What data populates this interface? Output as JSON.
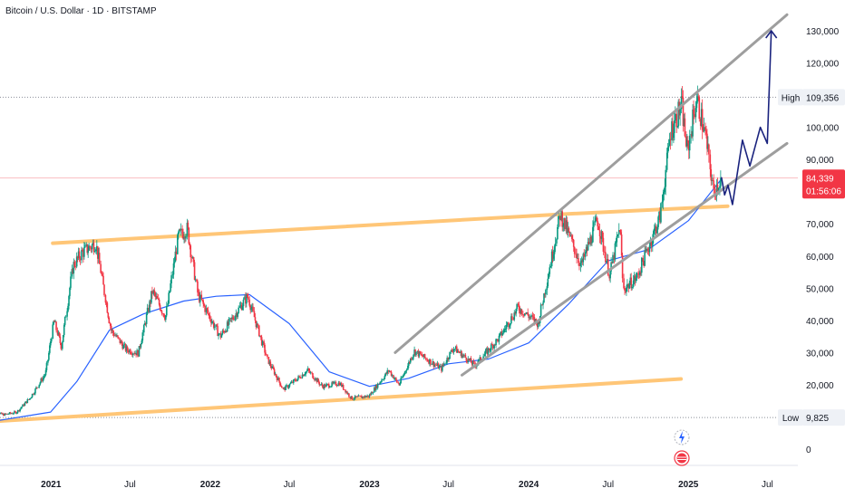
{
  "title": "Bitcoin / U.S. Dollar · 1D · BITSTAMP",
  "colors": {
    "up": "#089981",
    "down": "#f23645",
    "ma": "#2962ff",
    "channel": "#9e9e9e",
    "support": "#ffc677",
    "projection": "#1a237e",
    "price_badge": "#f23645",
    "hilo_badge_bg": "#eef1f6"
  },
  "chart_data": {
    "type": "candlestick",
    "symbol": "BTCUSD",
    "exchange": "BITSTAMP",
    "interval": "1D",
    "x_range": [
      "2020-08-10",
      "2025-08-15"
    ],
    "y_ticks": [
      0,
      10000,
      20000,
      30000,
      40000,
      50000,
      60000,
      70000,
      80000,
      90000,
      100000,
      110000,
      120000,
      130000
    ],
    "y_tick_labels": [
      "0",
      "",
      "20,000",
      "30,000",
      "40,000",
      "50,000",
      "60,000",
      "70,000",
      "",
      "90,000",
      "100,000",
      "",
      "120,000",
      "130,000"
    ],
    "x_tick_labels": [
      {
        "date": "2021-01-01",
        "label": "2021",
        "year": true
      },
      {
        "date": "2021-07-01",
        "label": "Jul",
        "year": false
      },
      {
        "date": "2022-01-01",
        "label": "2022",
        "year": true
      },
      {
        "date": "2022-07-01",
        "label": "Jul",
        "year": false
      },
      {
        "date": "2023-01-01",
        "label": "2023",
        "year": true
      },
      {
        "date": "2023-07-01",
        "label": "Jul",
        "year": false
      },
      {
        "date": "2024-01-01",
        "label": "2024",
        "year": true
      },
      {
        "date": "2024-07-01",
        "label": "Jul",
        "year": false
      },
      {
        "date": "2025-01-01",
        "label": "2025",
        "year": true
      },
      {
        "date": "2025-07-01",
        "label": "Jul",
        "year": false
      }
    ],
    "price_path": [
      [
        "2020-08-15",
        11800
      ],
      [
        "2020-09-15",
        10700
      ],
      [
        "2020-10-15",
        11500
      ],
      [
        "2020-11-15",
        16000
      ],
      [
        "2020-12-20",
        23500
      ],
      [
        "2021-01-08",
        40000
      ],
      [
        "2021-01-25",
        32000
      ],
      [
        "2021-02-21",
        57000
      ],
      [
        "2021-03-13",
        61000
      ],
      [
        "2021-04-14",
        64000
      ],
      [
        "2021-05-19",
        37000
      ],
      [
        "2021-06-22",
        31000
      ],
      [
        "2021-07-20",
        29800
      ],
      [
        "2021-08-22",
        49000
      ],
      [
        "2021-09-21",
        41000
      ],
      [
        "2021-10-20",
        66000
      ],
      [
        "2021-11-10",
        68500
      ],
      [
        "2021-12-04",
        48000
      ],
      [
        "2022-01-24",
        35000
      ],
      [
        "2022-03-28",
        47500
      ],
      [
        "2022-05-12",
        28000
      ],
      [
        "2022-06-18",
        18500
      ],
      [
        "2022-08-13",
        24500
      ],
      [
        "2022-09-15",
        19500
      ],
      [
        "2022-10-25",
        20500
      ],
      [
        "2022-11-21",
        15800
      ],
      [
        "2022-12-31",
        16500
      ],
      [
        "2023-02-15",
        24500
      ],
      [
        "2023-03-10",
        20000
      ],
      [
        "2023-04-14",
        30500
      ],
      [
        "2023-06-15",
        25000
      ],
      [
        "2023-07-13",
        31500
      ],
      [
        "2023-08-31",
        26000
      ],
      [
        "2023-10-25",
        34500
      ],
      [
        "2023-12-08",
        44000
      ],
      [
        "2024-01-23",
        39000
      ],
      [
        "2024-03-14",
        73000
      ],
      [
        "2024-05-01",
        57000
      ],
      [
        "2024-06-07",
        71500
      ],
      [
        "2024-07-05",
        54000
      ],
      [
        "2024-07-29",
        69500
      ],
      [
        "2024-08-05",
        49500
      ],
      [
        "2024-09-06",
        53500
      ],
      [
        "2024-10-29",
        72500
      ],
      [
        "2024-11-22",
        99000
      ],
      [
        "2024-12-17",
        107000
      ],
      [
        "2024-12-30",
        92000
      ],
      [
        "2025-01-20",
        109356
      ],
      [
        "2025-02-10",
        97000
      ],
      [
        "2025-02-28",
        80000
      ],
      [
        "2025-03-18",
        84339
      ]
    ],
    "moving_average": [
      [
        "2020-08-15",
        8500
      ],
      [
        "2020-12-31",
        11500
      ],
      [
        "2021-03-01",
        21000
      ],
      [
        "2021-05-15",
        37000
      ],
      [
        "2021-08-01",
        42000
      ],
      [
        "2021-11-01",
        46000
      ],
      [
        "2022-01-15",
        47500
      ],
      [
        "2022-04-01",
        48000
      ],
      [
        "2022-07-01",
        39000
      ],
      [
        "2022-10-01",
        24000
      ],
      [
        "2023-01-01",
        19500
      ],
      [
        "2023-04-01",
        22000
      ],
      [
        "2023-07-01",
        26500
      ],
      [
        "2023-10-01",
        28000
      ],
      [
        "2024-01-01",
        33000
      ],
      [
        "2024-04-01",
        45000
      ],
      [
        "2024-07-01",
        58500
      ],
      [
        "2024-10-01",
        62000
      ],
      [
        "2025-01-01",
        71000
      ],
      [
        "2025-03-18",
        84000
      ]
    ],
    "annotations": {
      "high": {
        "label": "High",
        "value": 109356,
        "value_label": "109,356"
      },
      "low": {
        "label": "Low",
        "value": 9825,
        "value_label": "9,825"
      },
      "last_price": {
        "value": 84339,
        "value_label": "84,339",
        "countdown": "01:56:06"
      }
    },
    "drawings": {
      "support_channel_upper": [
        [
          "2021-01-05",
          64000
        ],
        [
          "2024-03-15",
          73000
        ],
        [
          "2025-04-01",
          75500
        ]
      ],
      "support_channel_lower": [
        [
          "2020-08-10",
          8500
        ],
        [
          "2024-12-15",
          21800
        ]
      ],
      "rising_channel_upper": [
        [
          "2023-03-01",
          30000
        ],
        [
          "2025-08-15",
          135000
        ]
      ],
      "rising_channel_lower": [
        [
          "2023-08-01",
          23000
        ],
        [
          "2025-08-15",
          95000
        ]
      ],
      "projection_path": [
        [
          "2025-03-18",
          84339
        ],
        [
          "2025-03-25",
          79000
        ],
        [
          "2025-04-02",
          82000
        ],
        [
          "2025-04-12",
          76000
        ],
        [
          "2025-05-05",
          96000
        ],
        [
          "2025-05-22",
          88000
        ],
        [
          "2025-06-15",
          100000
        ],
        [
          "2025-07-01",
          95000
        ],
        [
          "2025-07-10",
          130000
        ]
      ]
    }
  }
}
